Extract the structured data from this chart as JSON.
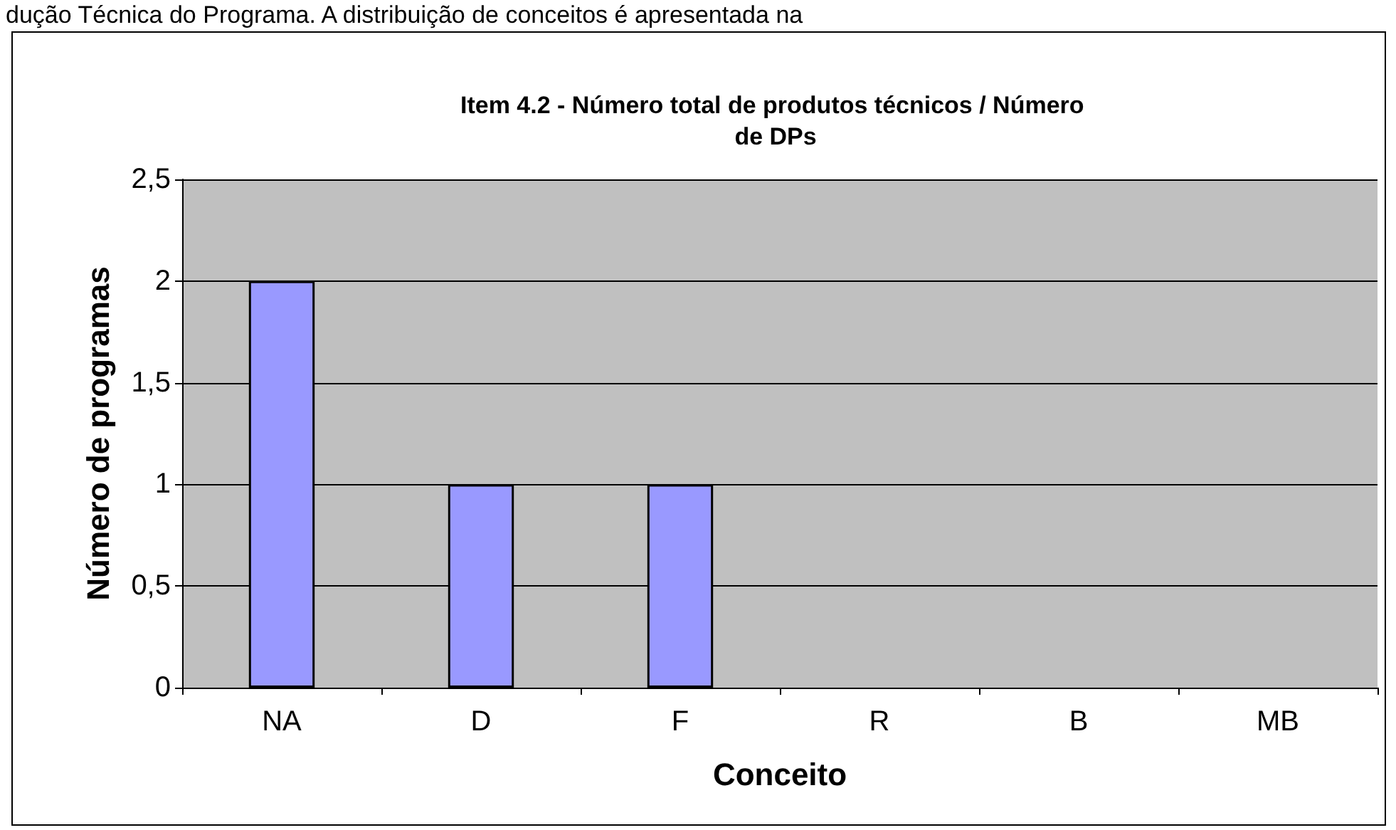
{
  "chart_data": {
    "type": "bar",
    "title": "Item 4.2 - Número total de produtos técnicos / Número de DPs",
    "xlabel": "Conceito",
    "ylabel": "Número de programas",
    "annotations": [
      "dução Técnica do Programa. A distribuição de conceitos é apresentada na"
    ],
    "categories": [
      "NA",
      "D",
      "F",
      "R",
      "B",
      "MB"
    ],
    "values": [
      2,
      1,
      1,
      0,
      0,
      0
    ],
    "color": "#9999ff",
    "ylim": [
      0,
      2.5
    ],
    "yticks": [
      0,
      {
        "value": 0.5,
        "label": "0,5"
      },
      1,
      {
        "value": 1.5,
        "label": "1,5"
      },
      2,
      {
        "value": 2.5,
        "label": "2,5"
      }
    ],
    "grid": "y"
  }
}
